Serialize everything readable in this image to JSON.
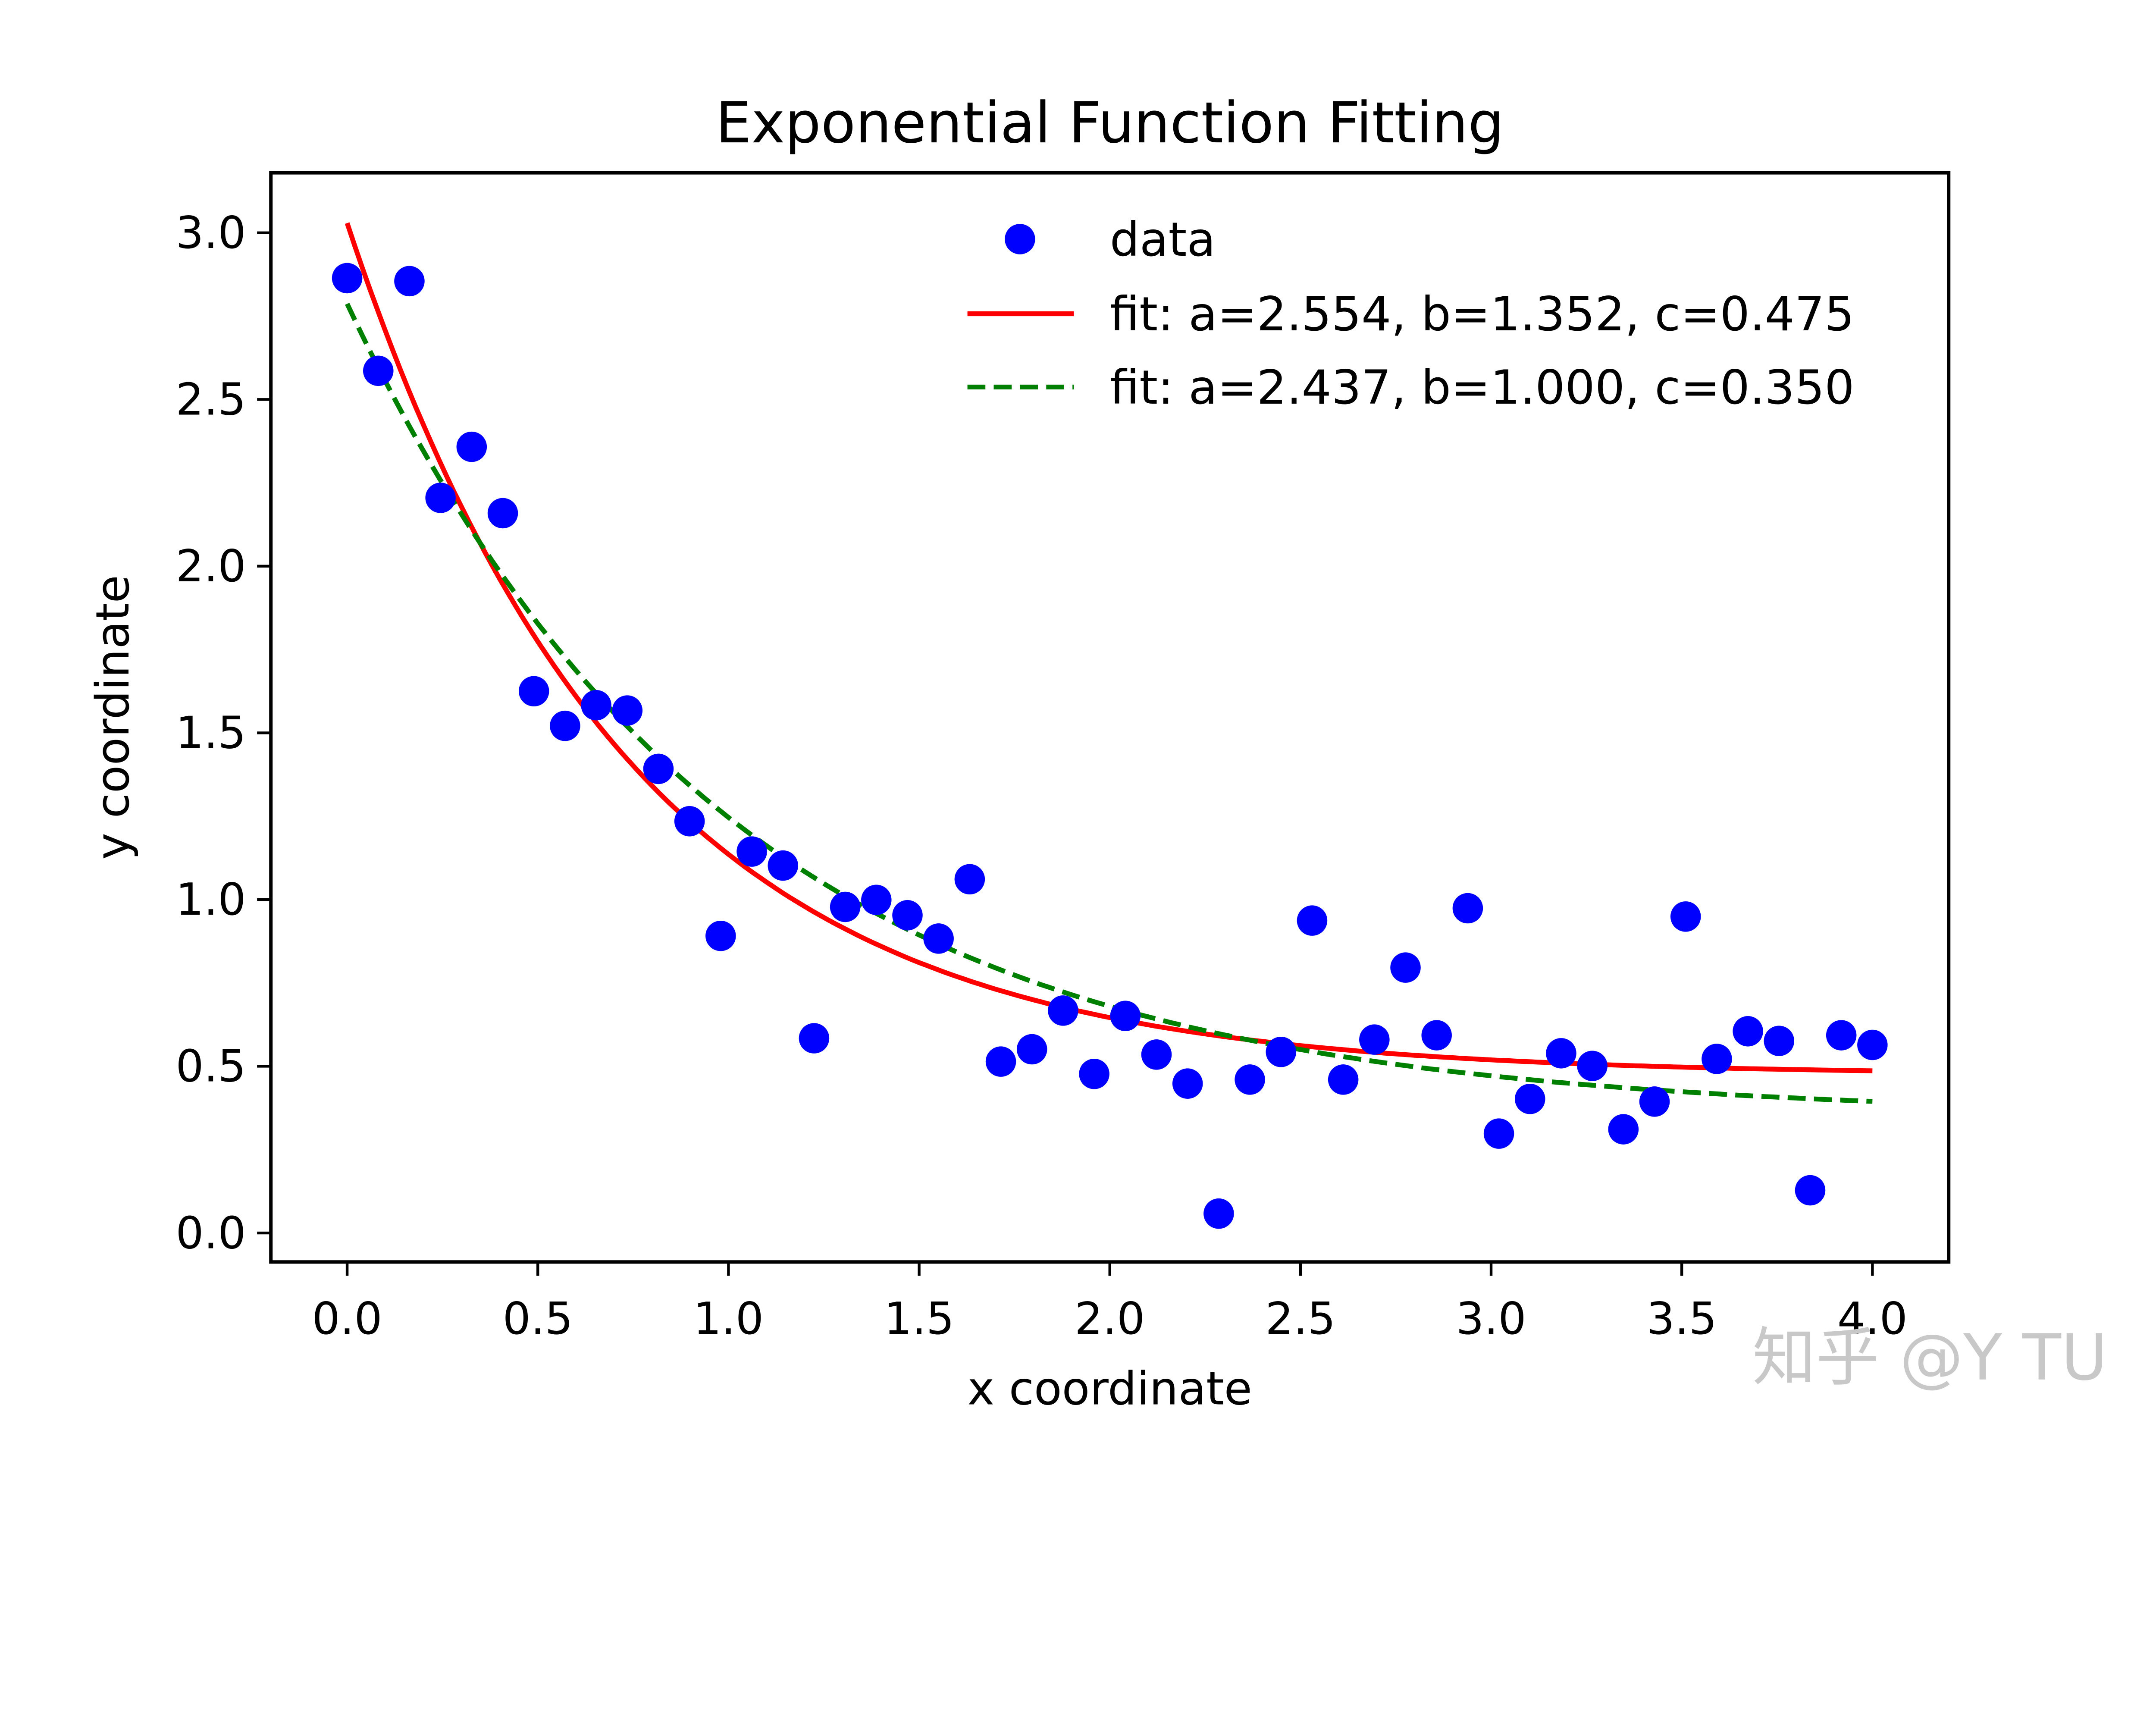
{
  "chart_data": {
    "type": "scatter",
    "title": "Exponential Function Fitting",
    "xlabel": "x coordinate",
    "ylabel": "y coordinate",
    "xlim": [
      -0.2,
      4.2
    ],
    "ylim": [
      -0.087,
      3.18
    ],
    "xticks": [
      "0.0",
      "0.5",
      "1.0",
      "1.5",
      "2.0",
      "2.5",
      "3.0",
      "3.5",
      "4.0"
    ],
    "yticks": [
      "0.0",
      "0.5",
      "1.0",
      "1.5",
      "2.0",
      "2.5",
      "3.0"
    ],
    "grid": false,
    "legend_position": "top-right",
    "series": [
      {
        "name": "data",
        "kind": "scatter",
        "color": "#0000ff",
        "x_range": [
          0,
          4
        ],
        "y": [
          2.864,
          2.586,
          2.855,
          2.205,
          2.358,
          2.159,
          1.625,
          1.521,
          1.583,
          1.567,
          1.392,
          1.235,
          0.891,
          1.144,
          1.102,
          0.584,
          0.978,
          0.999,
          0.953,
          0.883,
          1.061,
          0.514,
          0.551,
          0.667,
          0.477,
          0.651,
          0.535,
          0.448,
          0.058,
          0.46,
          0.543,
          0.937,
          0.46,
          0.58,
          0.796,
          0.593,
          0.974,
          0.298,
          0.402,
          0.539,
          0.501,
          0.311,
          0.394,
          0.949,
          0.522,
          0.605,
          0.576,
          0.128,
          0.593,
          0.564
        ]
      },
      {
        "name": "fit: a=2.554, b=1.352, c=0.475",
        "kind": "line",
        "style": "solid",
        "color": "#ff0000",
        "model": "a*exp(-b*x)+c",
        "params": {
          "a": 2.554,
          "b": 1.352,
          "c": 0.475
        }
      },
      {
        "name": "fit: a=2.437, b=1.000, c=0.350",
        "kind": "line",
        "style": "dashed",
        "color": "#008000",
        "model": "a*exp(-b*x)+c",
        "params": {
          "a": 2.437,
          "b": 1.0,
          "c": 0.35
        }
      }
    ]
  },
  "watermark": "知乎 @Y TU"
}
